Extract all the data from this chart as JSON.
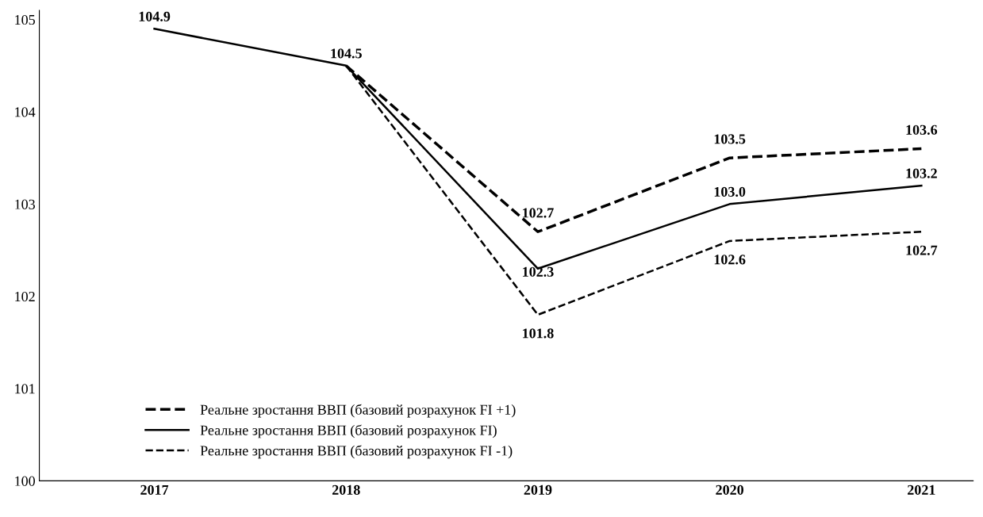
{
  "chart_data": {
    "type": "line",
    "categories": [
      "2017",
      "2018",
      "2019",
      "2020",
      "2021"
    ],
    "series": [
      {
        "name": "Реальне зростання ВВП (базовий розрахунок FI +1)",
        "color": "#000000",
        "line_style": "dashed",
        "values": [
          null,
          104.5,
          102.7,
          103.5,
          103.6
        ],
        "value_labels": [
          null,
          null,
          "102.7",
          "103.5",
          "103.6"
        ]
      },
      {
        "name": "Реальне зростання ВВП (базовий розрахунок FI)",
        "color": "#000000",
        "line_style": "solid",
        "values": [
          104.9,
          104.5,
          102.3,
          103.0,
          103.2
        ],
        "value_labels": [
          "104.9",
          "104.5",
          "102.3",
          "103.0",
          "103.2"
        ]
      },
      {
        "name": "Реальне зростання ВВП (базовий розрахунок FI -1)",
        "color": "#000000",
        "line_style": "dashed",
        "values": [
          null,
          104.5,
          101.8,
          102.6,
          102.7
        ],
        "value_labels": [
          null,
          null,
          "101.8",
          "102.6",
          "102.7"
        ]
      }
    ],
    "ylim": [
      100,
      105.1
    ],
    "yticks": [
      100,
      101,
      102,
      103,
      104,
      105
    ],
    "grid": false,
    "legend": "bottom left",
    "marker": "none"
  }
}
